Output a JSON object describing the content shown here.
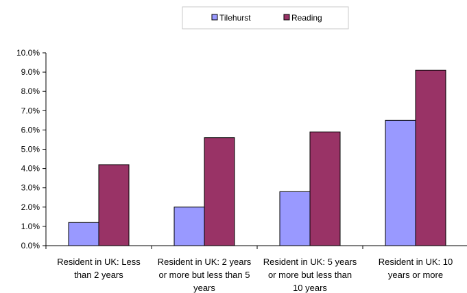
{
  "chart_data": {
    "type": "bar",
    "title": "",
    "xlabel": "",
    "ylabel": "",
    "ylim": [
      0,
      10
    ],
    "y_tick_labels": [
      "0.0%",
      "1.0%",
      "2.0%",
      "3.0%",
      "4.0%",
      "5.0%",
      "6.0%",
      "7.0%",
      "8.0%",
      "9.0%",
      "10.0%"
    ],
    "categories": [
      "Resident in UK: Less than 2 years",
      "Resident in UK: 2 years or more but less than 5 years",
      "Resident in UK: 5 years or more but less than 10 years",
      "Resident in UK: 10 years or more"
    ],
    "category_label_lines": [
      [
        "Resident in UK: Less",
        "than 2 years"
      ],
      [
        "Resident in UK: 2 years",
        "or more but less than 5",
        "years"
      ],
      [
        "Resident in UK: 5 years",
        "or more but less than",
        "10 years"
      ],
      [
        "Resident in UK: 10",
        "years or more"
      ]
    ],
    "series": [
      {
        "name": "Tilehurst",
        "color": "#9999ff",
        "values": [
          1.2,
          2.0,
          2.8,
          6.5
        ]
      },
      {
        "name": "Reading",
        "color": "#993366",
        "values": [
          4.2,
          5.6,
          5.9,
          9.1
        ]
      }
    ],
    "grid": false,
    "legend_position": "top"
  }
}
